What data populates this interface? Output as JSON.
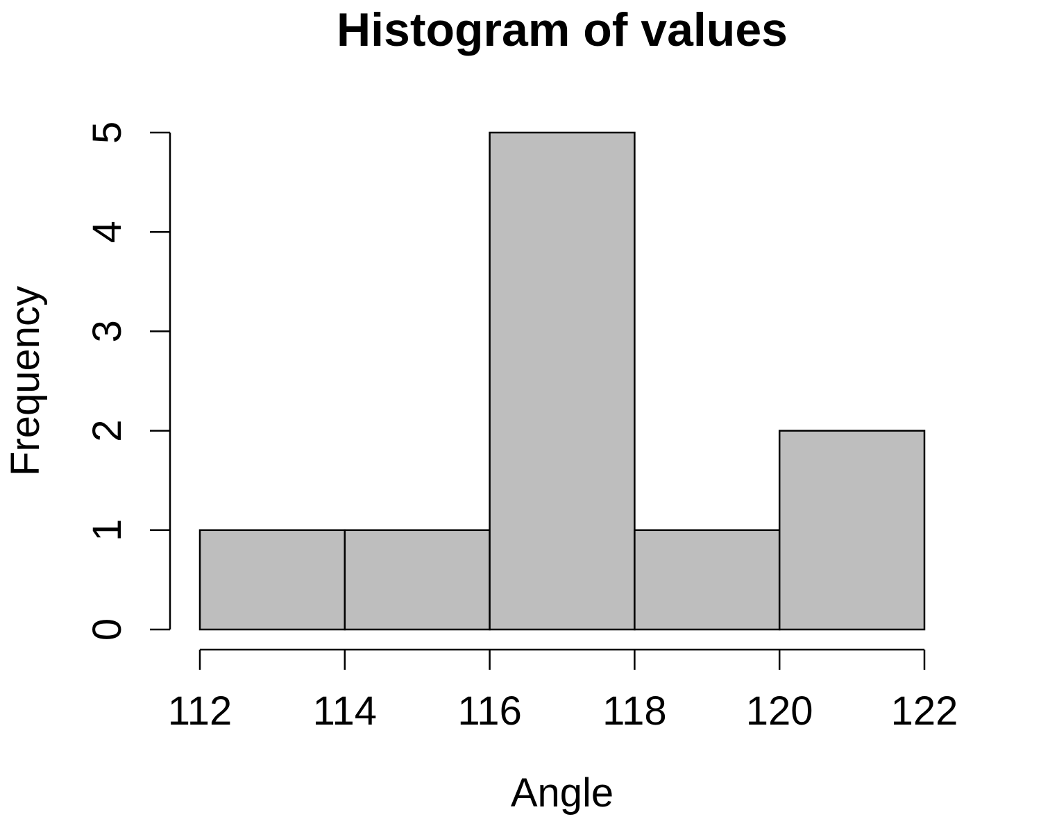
{
  "chart_data": {
    "type": "bar",
    "title": "Histogram of values",
    "xlabel": "Angle",
    "ylabel": "Frequency",
    "bins": [
      {
        "x0": 112,
        "x1": 114,
        "count": 1
      },
      {
        "x0": 114,
        "x1": 116,
        "count": 1
      },
      {
        "x0": 116,
        "x1": 118,
        "count": 5
      },
      {
        "x0": 118,
        "x1": 120,
        "count": 1
      },
      {
        "x0": 120,
        "x1": 122,
        "count": 2
      }
    ],
    "xlim": [
      112,
      122
    ],
    "ylim": [
      0,
      5
    ],
    "x_ticks": [
      "112",
      "114",
      "116",
      "118",
      "120",
      "122"
    ],
    "y_ticks": [
      "0",
      "1",
      "2",
      "3",
      "4",
      "5"
    ],
    "bar_color": "#bebebe",
    "grid": false
  }
}
